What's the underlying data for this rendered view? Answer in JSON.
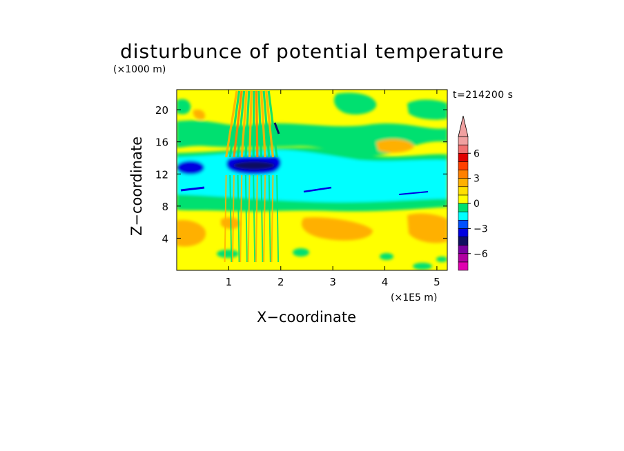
{
  "chart_data": {
    "type": "heatmap",
    "title": "disturbunce of potential temperature",
    "time_label": "t=214200 s",
    "xlabel": "X−coordinate",
    "x_unit": "(×1E5 m)",
    "ylabel": "Z−coordinate",
    "y_unit": "(×1000 m)",
    "xlim": [
      0,
      5.2
    ],
    "ylim": [
      0,
      22.5
    ],
    "x_ticks": [
      1,
      2,
      3,
      4,
      5
    ],
    "y_ticks": [
      4,
      8,
      12,
      16,
      20
    ],
    "colorbar": {
      "levels": [
        -8,
        -7,
        -6,
        -5,
        -4,
        -3,
        -2,
        -1,
        0,
        1,
        2,
        3,
        4,
        5,
        6,
        7,
        8
      ],
      "tick_labels": [
        "6",
        "3",
        "0",
        "−3",
        "−6"
      ],
      "tick_values": [
        6,
        3,
        0,
        -3,
        -6
      ],
      "colors": [
        "#e000b0",
        "#b000a0",
        "#7a00a0",
        "#101060",
        "#0000e0",
        "#0050ff",
        "#00ffff",
        "#00e070",
        "#ffff00",
        "#ffe000",
        "#ffb000",
        "#ff8000",
        "#ff4000",
        "#e00000",
        "#f07070",
        "#f0a0a0"
      ],
      "extend_top": true,
      "extend_bottom": false
    },
    "field_bands": [
      {
        "z_range": [
          0,
          7.5
        ],
        "value": 0.5,
        "note": "lower layer, yellow with orange patches"
      },
      {
        "z_range": [
          7.5,
          9.5
        ],
        "value": -1.5,
        "note": "green"
      },
      {
        "z_range": [
          9.5,
          14.5
        ],
        "value": -2.5,
        "note": "cyan band"
      },
      {
        "z_range": [
          12.5,
          14.0
        ],
        "value": -3.5,
        "note": "blue cells near x=0.2 and x=1.0-2.0"
      },
      {
        "z_range": [
          14.5,
          17
        ],
        "value": -1.5,
        "note": "green"
      },
      {
        "z_range": [
          17,
          22.5
        ],
        "value": 0.5,
        "note": "upper layer, yellow with green and orange patches"
      }
    ]
  }
}
